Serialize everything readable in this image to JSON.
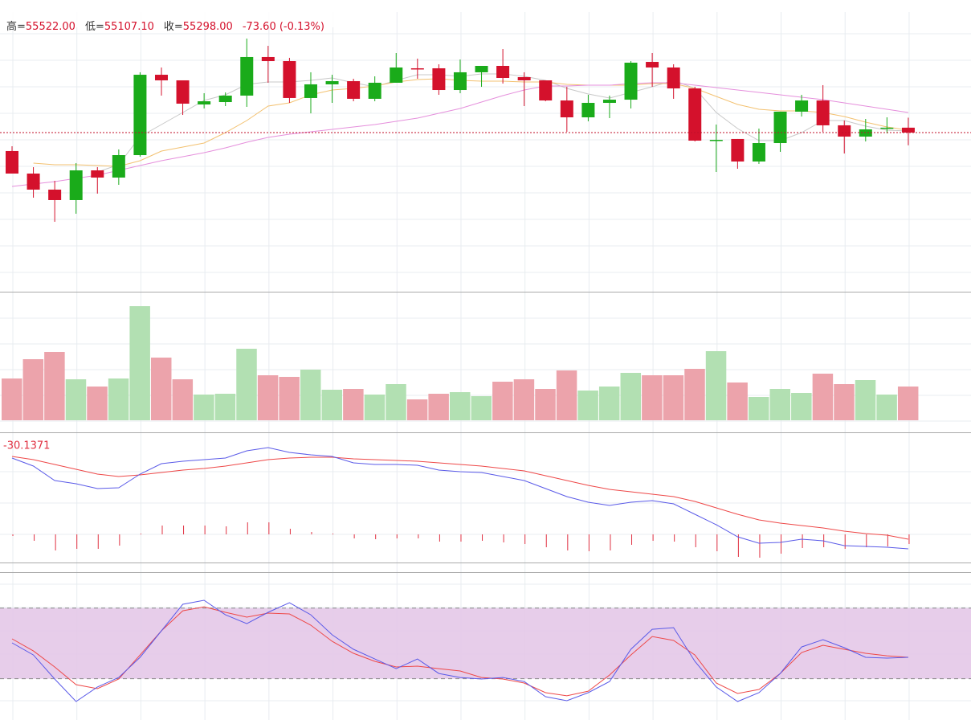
{
  "chart_data": {
    "type": "candlestick",
    "header": [
      {
        "label": "高=",
        "value": "55522.00"
      },
      {
        "label": "低=",
        "value": "55107.10"
      },
      {
        "label": "收=",
        "value": "55298.00"
      }
    ],
    "change": "-73.60 (-0.13%)",
    "up_color": "#1aab1a",
    "down_color": "#d4112c",
    "ylim": [
      52922,
      57107
    ],
    "open": [
      55021,
      54683,
      54442,
      54285,
      54731,
      54623,
      54960,
      56166,
      56082,
      55720,
      55756,
      55853,
      56432,
      56371,
      55817,
      56022,
      56070,
      55805,
      56046,
      56263,
      56263,
      55937,
      56203,
      56299,
      56130,
      56082,
      55780,
      55527,
      55744,
      55792,
      56359,
      56275,
      55961,
      55177,
      55202,
      54864,
      55141,
      55612,
      55780,
      55407,
      55238,
      55358,
      55371.6
    ],
    "high": [
      55093,
      54779,
      54574,
      54840,
      54779,
      55045,
      56203,
      56275,
      56082,
      55889,
      55901,
      56709,
      56600,
      56420,
      56203,
      56166,
      56106,
      56142,
      56492,
      56408,
      56323,
      56395,
      56299,
      56552,
      56203,
      56082,
      55985,
      55865,
      55853,
      56371,
      56492,
      56323,
      55985,
      55419,
      55202,
      55358,
      55612,
      55865,
      56010,
      55479,
      55503,
      55527,
      55522
    ],
    "low": [
      54683,
      54321,
      53959,
      54080,
      54382,
      54514,
      54936,
      55853,
      55563,
      55660,
      55696,
      55684,
      56046,
      55744,
      55587,
      55744,
      55768,
      55768,
      56046,
      56106,
      55865,
      55889,
      55985,
      56034,
      55696,
      55768,
      55310,
      55467,
      55515,
      55660,
      55985,
      55805,
      55165,
      54707,
      54755,
      54828,
      55009,
      55539,
      55310,
      54984,
      55165,
      55286,
      55107.1
    ],
    "close": [
      54683,
      54442,
      54285,
      54731,
      54623,
      54960,
      56166,
      56082,
      55732,
      55768,
      55853,
      56432,
      56371,
      55817,
      56022,
      56070,
      55805,
      56046,
      56275,
      56251,
      55937,
      56203,
      56299,
      56118,
      56082,
      55780,
      55527,
      55744,
      55792,
      56347,
      56275,
      55961,
      55177,
      55189,
      54864,
      55141,
      55612,
      55780,
      55407,
      55238,
      55346,
      55371.6,
      55298
    ],
    "ma": [
      {
        "color": "#c8c8c8",
        "values": [
          null,
          null,
          null,
          null,
          54707,
          54816,
          55238,
          55419,
          55600,
          55780,
          55865,
          56022,
          56058,
          56058,
          56082,
          56118,
          56046,
          55985,
          56082,
          56166,
          56166,
          56142,
          56178,
          56178,
          56142,
          56082,
          55961,
          55877,
          55817,
          55901,
          55985,
          56082,
          55961,
          55600,
          55358,
          55177,
          55177,
          55298,
          55479,
          55479,
          55394,
          55334,
          55322
        ]
      },
      {
        "color": "#f3c170",
        "values": [
          null,
          54840,
          54816,
          54816,
          54804,
          54791,
          54876,
          55021,
          55081,
          55141,
          55298,
          55479,
          55696,
          55744,
          55865,
          55937,
          55961,
          55997,
          56058,
          56094,
          56106,
          56082,
          56070,
          56070,
          56058,
          56058,
          56022,
          56010,
          56010,
          56010,
          56034,
          56034,
          55961,
          55841,
          55720,
          55648,
          55624,
          55624,
          55600,
          55539,
          55455,
          55382,
          55334
        ]
      },
      {
        "color": "#e58fdc",
        "values": [
          54490,
          54526,
          54562,
          54611,
          54659,
          54731,
          54804,
          54876,
          54936,
          54997,
          55069,
          55153,
          55226,
          55274,
          55310,
          55346,
          55382,
          55419,
          55467,
          55515,
          55587,
          55660,
          55756,
          55853,
          55937,
          55997,
          55997,
          56010,
          56010,
          56034,
          56046,
          56046,
          56010,
          55973,
          55937,
          55901,
          55865,
          55829,
          55792,
          55744,
          55696,
          55648,
          55600
        ]
      }
    ],
    "volume": {
      "up_color": "#b2e0b2",
      "down_color": "#eca3ab",
      "ylim": [
        0,
        160
      ],
      "values": [
        52,
        76,
        85,
        51,
        42,
        52,
        142,
        78,
        51,
        32,
        33,
        89,
        56,
        54,
        63,
        38,
        39,
        32,
        45,
        26,
        33,
        35,
        30,
        48,
        51,
        39,
        62,
        37,
        42,
        59,
        56,
        56,
        64,
        86,
        47,
        29,
        39,
        34,
        58,
        45,
        50,
        32,
        42
      ]
    },
    "macd": {
      "label": "-30.1371",
      "ylim": [
        -235,
        635
      ],
      "hist_color": "#e03040",
      "dif": {
        "color": "#5a5ae8",
        "values": [
          475,
          425,
          335,
          315,
          285,
          290,
          375,
          440,
          455,
          465,
          475,
          520,
          540,
          510,
          495,
          485,
          445,
          435,
          435,
          430,
          400,
          390,
          385,
          360,
          335,
          285,
          235,
          200,
          180,
          200,
          210,
          190,
          125,
          60,
          -15,
          -55,
          -50,
          -30,
          -40,
          -70,
          -75,
          -80,
          -90
        ]
      },
      "dea": {
        "color": "#ee4848",
        "values": [
          485,
          465,
          435,
          405,
          375,
          360,
          370,
          385,
          400,
          410,
          425,
          445,
          465,
          475,
          480,
          480,
          470,
          465,
          460,
          455,
          445,
          435,
          425,
          410,
          395,
          365,
          335,
          305,
          280,
          265,
          250,
          235,
          205,
          165,
          125,
          90,
          70,
          55,
          40,
          20,
          5,
          -5,
          -30.1371
        ]
      },
      "hist": [
        -10,
        -40,
        -100,
        -90,
        -90,
        -70,
        5,
        55,
        55,
        55,
        50,
        75,
        75,
        35,
        15,
        5,
        -25,
        -30,
        -25,
        -25,
        -45,
        -45,
        -40,
        -50,
        -60,
        -80,
        -100,
        -105,
        -100,
        -65,
        -40,
        -45,
        -80,
        -105,
        -140,
        -145,
        -120,
        -85,
        -80,
        -90,
        -80,
        -75,
        -60
      ]
    },
    "kdj": {
      "ylim": [
        -15,
        110.5
      ],
      "band": [
        20,
        80
      ],
      "band_color": "#e4c8e8",
      "k": {
        "color": "#5a5ae8",
        "values": [
          50.5,
          40.2,
          19.8,
          0.7,
          13,
          21.1,
          38.2,
          60.7,
          83.2,
          86.6,
          74.3,
          66.8,
          76.4,
          84.5,
          74.3,
          57.3,
          45,
          36.8,
          28.6,
          36.8,
          24.5,
          21.1,
          19.8,
          21.1,
          17.7,
          4.8,
          1.4,
          8.2,
          17.7,
          45,
          62,
          63.4,
          34.8,
          13,
          0.7,
          8.2,
          24.5,
          47,
          53.2,
          46.4,
          38.2,
          37.5,
          38.2
        ]
      },
      "d": {
        "color": "#ee4848",
        "values": [
          53.9,
          43.6,
          30,
          15,
          11.6,
          19.8,
          40.2,
          60.7,
          77.7,
          81.1,
          76.4,
          72.3,
          75.7,
          75,
          65.5,
          51.8,
          41.6,
          34.8,
          30,
          30.7,
          28.6,
          26.6,
          21.1,
          19.8,
          16.4,
          8.2,
          5.5,
          9.5,
          23.2,
          40.2,
          55.9,
          52.5,
          40.2,
          16.4,
          7.5,
          10.9,
          24.5,
          42.3,
          48.4,
          45,
          41.6,
          39.5,
          38.2
        ]
      }
    }
  }
}
